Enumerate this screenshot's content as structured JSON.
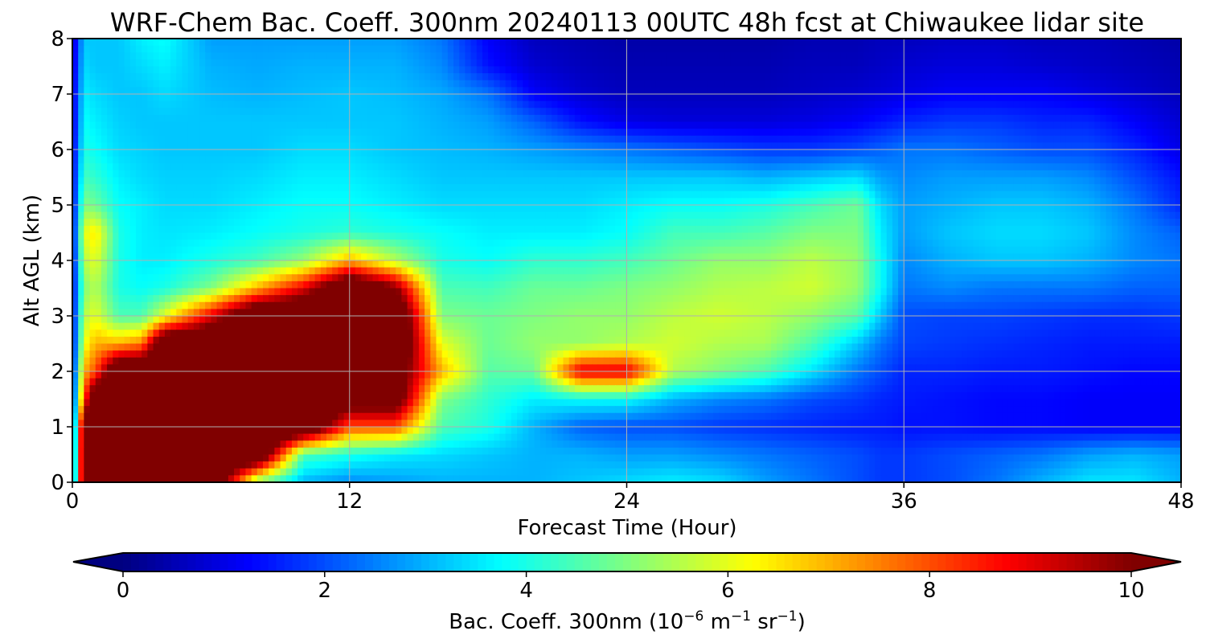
{
  "chart_data": {
    "type": "heatmap",
    "title": "WRF-Chem Bac. Coeff. 300nm  20240113 00UTC 48h fcst at Chiwaukee lidar site",
    "xlabel": "Forecast Time (Hour)",
    "ylabel": "Alt AGL (km)",
    "xlim": [
      0,
      48
    ],
    "ylim": [
      0,
      8
    ],
    "xticks": [
      "0",
      "12",
      "24",
      "36",
      "48"
    ],
    "xtick_values": [
      0,
      12,
      24,
      36,
      48
    ],
    "yticks": [
      "0",
      "1",
      "2",
      "3",
      "4",
      "5",
      "6",
      "7",
      "8"
    ],
    "ytick_values": [
      0,
      1,
      2,
      3,
      4,
      5,
      6,
      7,
      8
    ],
    "grid": true,
    "colormap": "jet",
    "colorbar": {
      "label_prefix": "Bac. Coeff. 300nm  (10",
      "label_exp1": "−6",
      "label_mid": " m",
      "label_exp2": "−1",
      "label_mid2": " sr",
      "label_exp3": "−1",
      "label_suffix": ")",
      "range": [
        0,
        10
      ],
      "ticks": [
        "0",
        "2",
        "4",
        "6",
        "8",
        "10"
      ],
      "tick_values": [
        0,
        2,
        4,
        6,
        8,
        10
      ],
      "extend": "both"
    },
    "x": [
      0,
      0.5,
      1,
      2,
      3,
      4,
      6,
      8,
      10,
      12,
      14,
      16,
      18,
      20,
      22,
      24,
      26,
      28,
      30,
      32,
      34,
      35,
      36,
      38,
      40,
      42,
      44,
      46,
      48
    ],
    "y": [
      0,
      0.5,
      1,
      1.5,
      2,
      2.5,
      3,
      3.5,
      4,
      4.5,
      5,
      5.5,
      6,
      6.5,
      7,
      7.5,
      8
    ],
    "z": [
      [
        1.5,
        11,
        12,
        12,
        12,
        12,
        12,
        5,
        3,
        2.6,
        2.8,
        3,
        3,
        3,
        3.2,
        3.4,
        3.6,
        3.4,
        2.8,
        2.4,
        2,
        1.8,
        1.8,
        2,
        2.4,
        3,
        3.5,
        3.5,
        3
      ],
      [
        1.5,
        11,
        12,
        12,
        12,
        12,
        12,
        12,
        4.5,
        4,
        3.6,
        3.4,
        3.2,
        3,
        3,
        2.8,
        2.8,
        2.6,
        2.4,
        2.2,
        2,
        1.8,
        1.8,
        2,
        2.2,
        2.4,
        2.8,
        3,
        2.8
      ],
      [
        1.3,
        11,
        12,
        12,
        12,
        12,
        12,
        12,
        12,
        8,
        8,
        4.5,
        4,
        3,
        2.2,
        2,
        2,
        1.8,
        1.7,
        1.6,
        1.5,
        1.5,
        1.4,
        1.4,
        1.3,
        1.3,
        1.2,
        1.2,
        1.2
      ],
      [
        1.2,
        8,
        12,
        12,
        12,
        12,
        12,
        12,
        12,
        11,
        11,
        5,
        4.2,
        3.6,
        3.8,
        3.8,
        3,
        2.6,
        2.4,
        2,
        1.8,
        1.6,
        1.5,
        1.4,
        1.3,
        1.3,
        1.2,
        1.2,
        1.2
      ],
      [
        1.1,
        7,
        8,
        12,
        12,
        12,
        12,
        12,
        12,
        12,
        11,
        7,
        4.6,
        4.8,
        9,
        9,
        5.5,
        5,
        4.5,
        3.5,
        2.4,
        2,
        1.6,
        1.6,
        1.5,
        1.5,
        1.4,
        1.3,
        1.3
      ],
      [
        1,
        6,
        7,
        7,
        7.5,
        12,
        12,
        12,
        12,
        12,
        12,
        6,
        4.8,
        5.2,
        5.2,
        5.5,
        5.8,
        5.5,
        5.4,
        4.5,
        3.2,
        2.4,
        1.9,
        1.8,
        1.7,
        1.6,
        1.5,
        1.5,
        1.5
      ],
      [
        1,
        5.5,
        6,
        4.5,
        4.5,
        6,
        9,
        12,
        12,
        12,
        12,
        5,
        4.8,
        5,
        5.2,
        5.2,
        5.6,
        5.8,
        5.6,
        5.2,
        4.6,
        3.2,
        2,
        1.9,
        1.9,
        1.8,
        1.7,
        1.7,
        1.8
      ],
      [
        1,
        5,
        5.5,
        4,
        3.8,
        4,
        5,
        7,
        9,
        12,
        10,
        4.5,
        4.4,
        4.8,
        4.8,
        5,
        5.2,
        5.5,
        5.6,
        5.8,
        5.2,
        3.8,
        2.4,
        2.6,
        2.4,
        2.4,
        2.4,
        2.2,
        2.2
      ],
      [
        1,
        5.5,
        6,
        4,
        3.6,
        3.6,
        4,
        4.4,
        5.2,
        7,
        5.5,
        4,
        3.8,
        4.2,
        4.2,
        4.4,
        4.8,
        5.2,
        5.2,
        5.6,
        5.2,
        3.8,
        2.6,
        3,
        3.2,
        3.2,
        3,
        2.6,
        2.4
      ],
      [
        1,
        6,
        6.5,
        4,
        3.6,
        3.5,
        3.6,
        3.8,
        4,
        4.2,
        4,
        3.8,
        3.6,
        3.6,
        3.6,
        3.8,
        4.4,
        4.4,
        4.6,
        5,
        5,
        3.6,
        2.8,
        3.2,
        3.4,
        3.4,
        3.2,
        2.6,
        2.2
      ],
      [
        1,
        5,
        4.8,
        3.8,
        3.6,
        3.4,
        3.4,
        3.6,
        3.8,
        3.8,
        3.6,
        3.4,
        3.4,
        3.4,
        3.4,
        3.6,
        3.8,
        3.8,
        4,
        4.4,
        4.8,
        3.4,
        2.8,
        3,
        3.2,
        3.2,
        3,
        2.4,
        1.6
      ],
      [
        1,
        4.4,
        4.2,
        3.6,
        3.4,
        3.3,
        3.3,
        3.4,
        3.6,
        3.6,
        3.4,
        3.2,
        3.2,
        3.2,
        3.2,
        3.2,
        3.2,
        3.2,
        3,
        3.2,
        3.4,
        2.8,
        2.6,
        2.8,
        2.8,
        2.8,
        2.6,
        2,
        1.4
      ],
      [
        0.9,
        4,
        3.8,
        3.4,
        3.3,
        3.2,
        3.2,
        3.2,
        3.4,
        3.4,
        3.2,
        3.1,
        3,
        2.8,
        2.6,
        2.4,
        2.2,
        2,
        1.8,
        1.8,
        2,
        2.2,
        2.4,
        2.4,
        2.2,
        2,
        2,
        1.6,
        1
      ],
      [
        0.8,
        3.8,
        3.6,
        3.3,
        3.2,
        3.2,
        3.2,
        3.2,
        3.2,
        3.2,
        3.2,
        3,
        2.8,
        2.2,
        1.4,
        1,
        0.9,
        0.9,
        0.9,
        1,
        1.2,
        1.4,
        1.6,
        1.8,
        1.8,
        1.6,
        1.6,
        1.2,
        0.8
      ],
      [
        0.8,
        3.6,
        3.4,
        3.2,
        3.2,
        3.4,
        3.1,
        3,
        3.1,
        3.2,
        3.1,
        2.9,
        2.4,
        1.2,
        0.8,
        0.6,
        0.6,
        0.6,
        0.6,
        0.7,
        0.8,
        0.9,
        1,
        1.2,
        1.2,
        1.2,
        1,
        0.8,
        0.6
      ],
      [
        0.7,
        3.4,
        3.2,
        3.2,
        3.4,
        3.6,
        3,
        2.9,
        3,
        3,
        3,
        2.6,
        1.4,
        0.8,
        0.6,
        0.5,
        0.5,
        0.5,
        0.5,
        0.6,
        0.6,
        0.7,
        0.8,
        0.9,
        0.9,
        0.8,
        0.7,
        0.6,
        0.5
      ],
      [
        0.6,
        3.2,
        3.2,
        3.2,
        3.6,
        3.8,
        2.8,
        2.8,
        2.8,
        2.8,
        2.8,
        2.4,
        1.2,
        0.6,
        0.5,
        0.4,
        0.4,
        0.4,
        0.4,
        0.5,
        0.5,
        0.6,
        0.6,
        0.7,
        0.7,
        0.6,
        0.6,
        0.5,
        0.4
      ]
    ]
  }
}
